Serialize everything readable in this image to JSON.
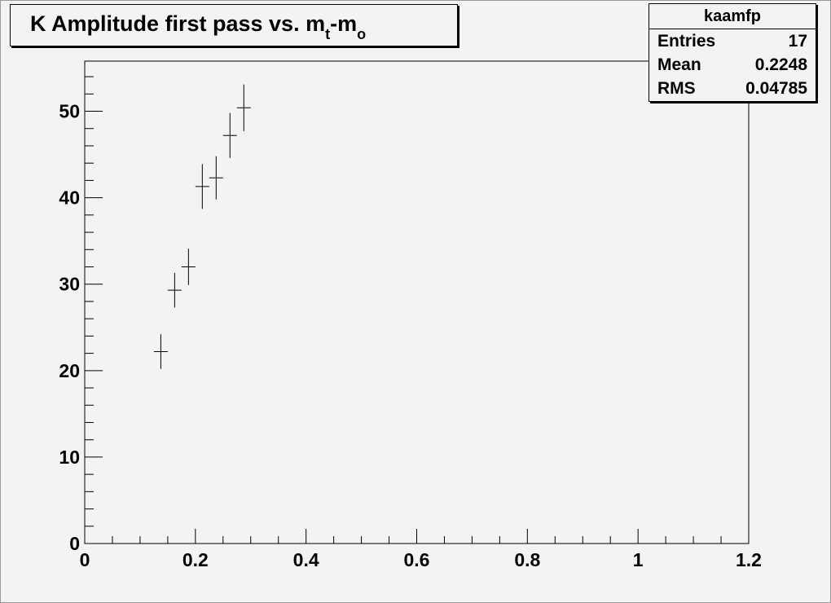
{
  "title": {
    "main": "K Amplitude first pass vs. m",
    "sub1": "t",
    "mid": "-m",
    "sub2": "o"
  },
  "stats": {
    "name": "kaamfp",
    "rows": [
      {
        "label": "Entries",
        "value": "17"
      },
      {
        "label": "Mean",
        "value": "0.2248"
      },
      {
        "label": "RMS",
        "value": "0.04785"
      }
    ]
  },
  "chart_data": {
    "type": "scatter",
    "title": "K Amplitude first pass vs. mt-mo",
    "xlabel": "",
    "ylabel": "",
    "xlim": [
      0,
      1.2
    ],
    "ylim": [
      0,
      55.8
    ],
    "grid": false,
    "xticks": [
      "0",
      "0.2",
      "0.4",
      "0.6",
      "0.8",
      "1",
      "1.2"
    ],
    "yticks": [
      "0",
      "10",
      "20",
      "30",
      "40",
      "50"
    ],
    "points": [
      {
        "x": 0.1375,
        "y": 22.2,
        "xerr": 0.0125,
        "yerr": 2.0
      },
      {
        "x": 0.1625,
        "y": 29.3,
        "xerr": 0.0125,
        "yerr": 2.0
      },
      {
        "x": 0.1875,
        "y": 32.0,
        "xerr": 0.0125,
        "yerr": 2.1
      },
      {
        "x": 0.2125,
        "y": 41.3,
        "xerr": 0.0125,
        "yerr": 2.6
      },
      {
        "x": 0.2375,
        "y": 42.3,
        "xerr": 0.0125,
        "yerr": 2.5
      },
      {
        "x": 0.2625,
        "y": 47.2,
        "xerr": 0.0125,
        "yerr": 2.6
      },
      {
        "x": 0.2875,
        "y": 50.4,
        "xerr": 0.0125,
        "yerr": 2.7
      }
    ]
  }
}
